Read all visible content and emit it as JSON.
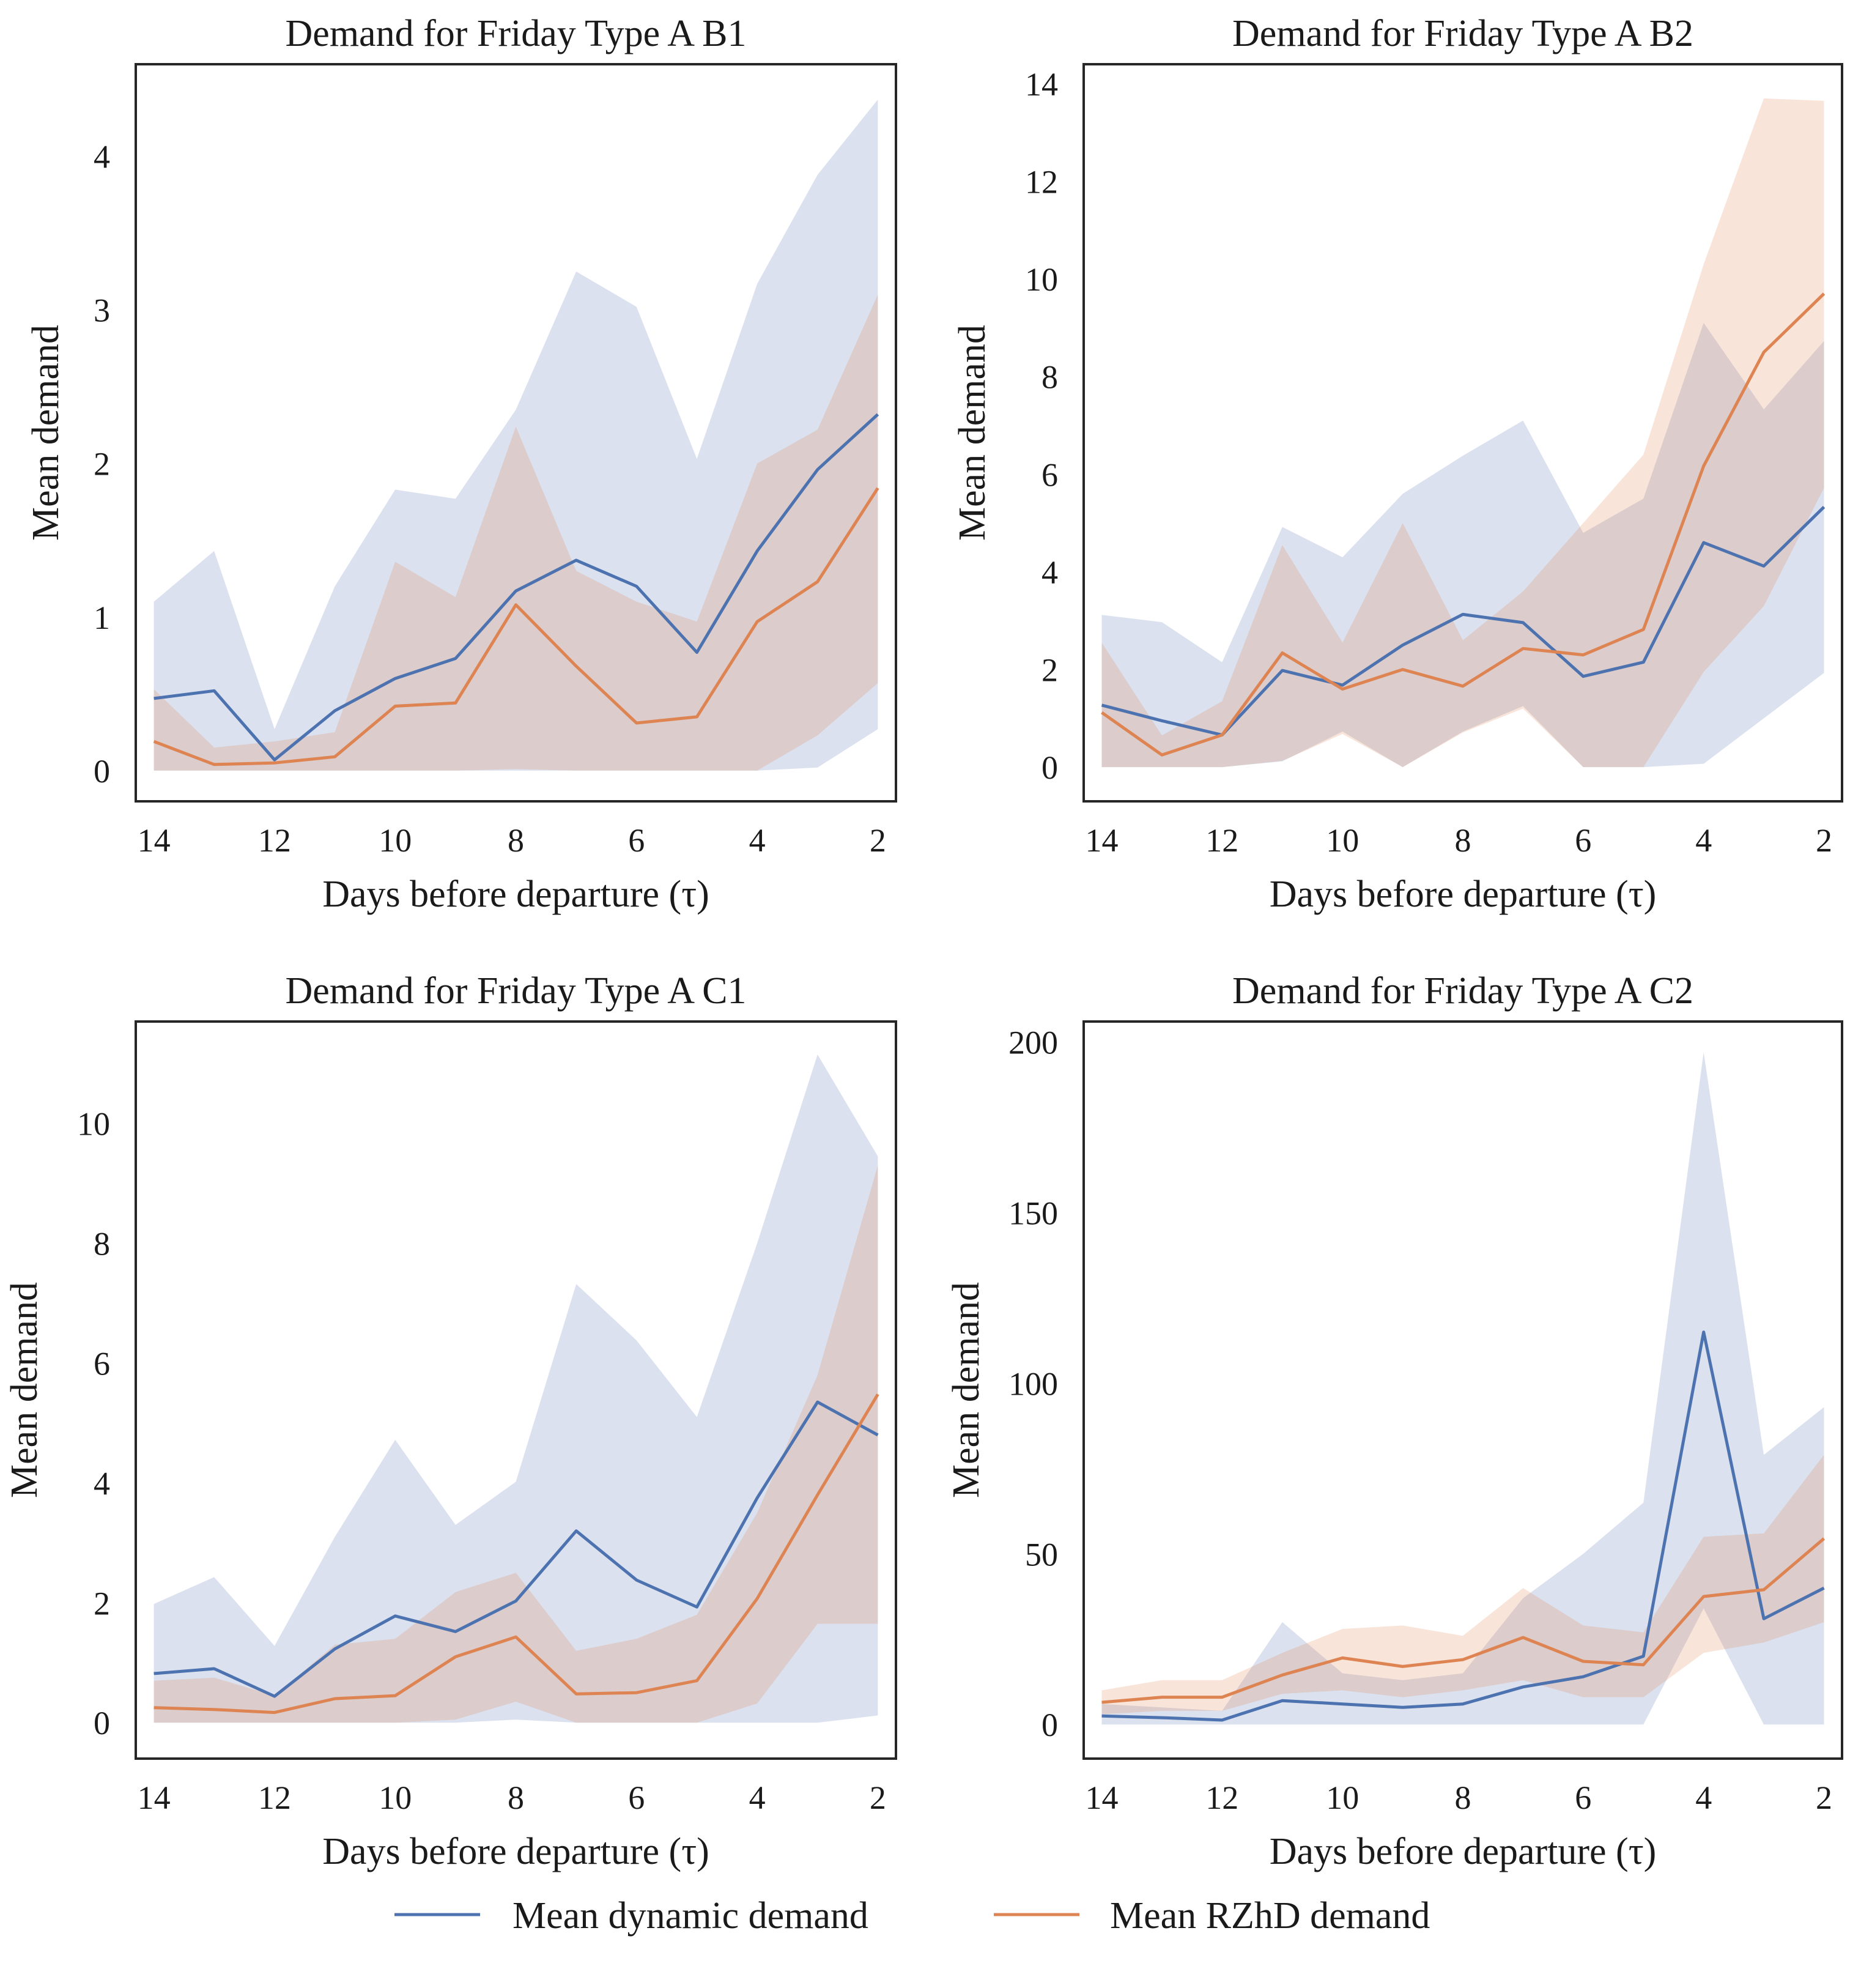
{
  "colors": {
    "dynamic": "#4c72b0",
    "rzhd": "#dd8452",
    "dynamic_band": "#dbe1ee",
    "rzhd_band": "#f4d9d6",
    "overlap_band": "#d6bcc9",
    "frame": "#262626"
  },
  "legend": {
    "placement": "bottom-center",
    "dynamic_label": "Mean dynamic demand",
    "rzhd_label": "Mean RZhD demand"
  },
  "chart_data": [
    {
      "type": "line",
      "title": "Demand for Friday Type A B1",
      "xlabel": "Days before departure (τ)",
      "ylabel": "Mean demand",
      "x": [
        14,
        13,
        12,
        11,
        10,
        9,
        8,
        7,
        6,
        5,
        4,
        3,
        2
      ],
      "xticks": [
        14,
        12,
        10,
        8,
        6,
        4,
        2
      ],
      "yticks": [
        0,
        1,
        2,
        3,
        4
      ],
      "ylim": [
        -0.2,
        4.6
      ],
      "series": [
        {
          "name": "Mean dynamic demand",
          "values": [
            0.47,
            0.52,
            0.07,
            0.39,
            0.6,
            0.73,
            1.17,
            1.37,
            1.2,
            0.77,
            1.43,
            1.96,
            2.32
          ],
          "lower": [
            0,
            0,
            0,
            0,
            0,
            0,
            0,
            0,
            0,
            0,
            0,
            0.02,
            0.27
          ],
          "upper": [
            1.1,
            1.43,
            0.27,
            1.2,
            1.83,
            1.77,
            2.35,
            3.25,
            3.02,
            2.03,
            3.17,
            3.88,
            4.37
          ]
        },
        {
          "name": "Mean RZhD demand",
          "values": [
            0.19,
            0.04,
            0.05,
            0.09,
            0.42,
            0.44,
            1.08,
            0.68,
            0.31,
            0.35,
            0.97,
            1.23,
            1.84
          ],
          "lower": [
            0,
            0,
            0,
            0,
            0,
            0,
            0.01,
            0,
            0,
            0,
            0,
            0.23,
            0.57
          ],
          "upper": [
            0.53,
            0.15,
            0.19,
            0.25,
            1.36,
            1.13,
            2.24,
            1.3,
            1.1,
            0.97,
            2.0,
            2.22,
            3.1
          ]
        }
      ]
    },
    {
      "type": "line",
      "title": "Demand for Friday Type A B2",
      "xlabel": "Days before departure (τ)",
      "ylabel": "Mean demand",
      "x": [
        14,
        13,
        12,
        11,
        10,
        9,
        8,
        7,
        6,
        5,
        4,
        3,
        2
      ],
      "xticks": [
        14,
        12,
        10,
        8,
        6,
        4,
        2
      ],
      "yticks": [
        0,
        2,
        4,
        6,
        8,
        10,
        12,
        14
      ],
      "ylim": [
        -0.7,
        14.4
      ],
      "series": [
        {
          "name": "Mean dynamic demand",
          "values": [
            1.27,
            0.95,
            0.66,
            1.98,
            1.68,
            2.5,
            3.13,
            2.96,
            1.86,
            2.15,
            4.6,
            4.12,
            5.33
          ],
          "lower": [
            0,
            0,
            0,
            0.12,
            0.73,
            0,
            0.73,
            1.25,
            0,
            0,
            0.07,
            1.0,
            1.93
          ],
          "upper": [
            3.12,
            2.97,
            2.15,
            4.92,
            4.3,
            5.6,
            6.38,
            7.1,
            4.8,
            5.5,
            9.1,
            7.33,
            8.73
          ]
        },
        {
          "name": "Mean RZhD demand",
          "values": [
            1.12,
            0.25,
            0.66,
            2.34,
            1.6,
            2.0,
            1.66,
            2.43,
            2.3,
            2.82,
            6.17,
            8.5,
            9.7
          ],
          "lower": [
            0,
            0,
            0,
            0.13,
            0.68,
            0,
            0.71,
            1.2,
            0,
            0,
            1.95,
            3.3,
            5.72
          ],
          "upper": [
            2.55,
            0.65,
            1.35,
            4.55,
            2.55,
            5.0,
            2.6,
            3.6,
            5.0,
            6.4,
            10.3,
            13.7,
            13.65
          ]
        }
      ]
    },
    {
      "type": "line",
      "title": "Demand for Friday Type A C1",
      "xlabel": "Days before departure (τ)",
      "ylabel": "Mean demand",
      "x": [
        14,
        13,
        12,
        11,
        10,
        9,
        8,
        7,
        6,
        5,
        4,
        3,
        2
      ],
      "xticks": [
        14,
        12,
        10,
        8,
        6,
        4,
        2
      ],
      "yticks": [
        0,
        2,
        4,
        6,
        8,
        10
      ],
      "ylim": [
        -0.6,
        11.7
      ],
      "series": [
        {
          "name": "Mean dynamic demand",
          "values": [
            0.82,
            0.9,
            0.44,
            1.23,
            1.78,
            1.52,
            2.03,
            3.2,
            2.38,
            1.93,
            3.75,
            5.35,
            4.8
          ],
          "lower": [
            0,
            0,
            0,
            0,
            0,
            0,
            0.05,
            0,
            0,
            0,
            0,
            0,
            0.12
          ],
          "upper": [
            1.98,
            2.43,
            1.28,
            3.1,
            4.72,
            3.3,
            4.02,
            7.32,
            6.38,
            5.1,
            8.0,
            11.15,
            9.45
          ]
        },
        {
          "name": "Mean RZhD demand",
          "values": [
            0.25,
            0.22,
            0.17,
            0.4,
            0.45,
            1.1,
            1.43,
            0.48,
            0.5,
            0.7,
            2.07,
            3.8,
            5.48
          ],
          "lower": [
            0,
            0,
            0,
            0,
            0,
            0.05,
            0.35,
            0,
            0,
            0,
            0.32,
            1.65,
            1.65
          ],
          "upper": [
            0.7,
            0.75,
            0.45,
            1.3,
            1.4,
            2.18,
            2.5,
            1.2,
            1.4,
            1.8,
            3.5,
            5.8,
            9.3
          ]
        }
      ]
    },
    {
      "type": "line",
      "title": "Demand for Friday Type A C2",
      "xlabel": "Days before departure (τ)",
      "ylabel": "Mean demand",
      "x": [
        14,
        13,
        12,
        11,
        10,
        9,
        8,
        7,
        6,
        5,
        4,
        3,
        2
      ],
      "xticks": [
        14,
        12,
        10,
        8,
        6,
        4,
        2
      ],
      "yticks": [
        0,
        50,
        100,
        150,
        200
      ],
      "ylim": [
        -10,
        206
      ],
      "series": [
        {
          "name": "Mean dynamic demand",
          "values": [
            2.5,
            2.0,
            1.3,
            7.0,
            6.0,
            5.0,
            6.0,
            11.0,
            14.0,
            20.0,
            115.0,
            31.0,
            40.0
          ],
          "lower": [
            0,
            0,
            0,
            0,
            0,
            0,
            0,
            0,
            0,
            0,
            34.0,
            0,
            0
          ],
          "upper": [
            6.0,
            5.0,
            4.0,
            30.0,
            15.0,
            13.0,
            15.0,
            37.0,
            50.0,
            65.0,
            197.0,
            79.0,
            93.0
          ]
        },
        {
          "name": "Mean RZhD demand",
          "values": [
            6.5,
            8.0,
            8.0,
            14.5,
            19.5,
            17.0,
            19.0,
            25.5,
            18.5,
            17.5,
            37.5,
            39.5,
            54.5
          ],
          "lower": [
            3.0,
            4.0,
            4.0,
            9.0,
            10.0,
            8.0,
            10.0,
            13.0,
            8.0,
            8.0,
            21.0,
            24.0,
            30.0
          ],
          "upper": [
            10.0,
            13.0,
            13.0,
            21.0,
            28.0,
            29.0,
            26.0,
            40.0,
            29.0,
            27.0,
            55.0,
            56.0,
            79.0
          ]
        }
      ]
    }
  ]
}
